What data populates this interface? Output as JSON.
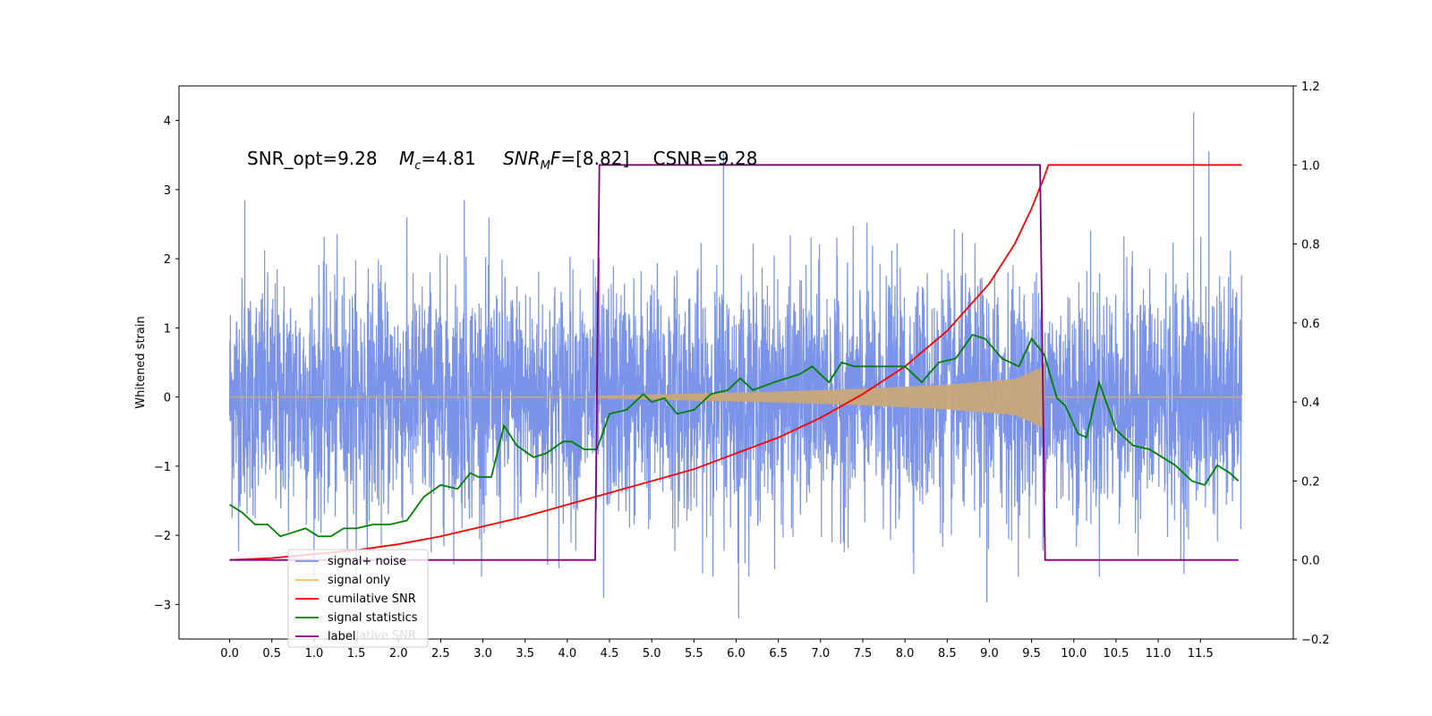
{
  "chart_data": {
    "type": "line",
    "title": "",
    "annotation": {
      "snr_opt": "SNR_opt=9.28",
      "mc_sym": "M",
      "mc_sub": "c",
      "mc_val": "=4.81",
      "mf_sym": "SNR",
      "mf_sub": "M",
      "mf_sym2": "F",
      "mf_val": "=[8.82]",
      "csnr": "CSNR=9.28"
    },
    "ylabel_left": "Whitened strain",
    "ylabel_right": "",
    "xlabel": "",
    "x_range": [
      0,
      11.99
    ],
    "xlim": [
      -0.6,
      12.6
    ],
    "ylim_left": [
      -3.5,
      4.5
    ],
    "ylim_right": [
      -0.2,
      1.2
    ],
    "x_ticks": [
      "0.0",
      "0.5",
      "1.0",
      "1.5",
      "2.0",
      "2.5",
      "3.0",
      "3.5",
      "4.0",
      "4.5",
      "5.0",
      "5.5",
      "6.0",
      "6.5",
      "7.0",
      "7.5",
      "8.0",
      "8.5",
      "9.0",
      "9.5",
      "10.0",
      "10.5",
      "11.0",
      "11.5"
    ],
    "y_ticks_left": [
      "−3",
      "−2",
      "−1",
      "0",
      "1",
      "2",
      "3",
      "4"
    ],
    "y_ticks_right": [
      "−0.2",
      "0.0",
      "0.2",
      "0.4",
      "0.6",
      "0.8",
      "1.0",
      "1.2"
    ],
    "grid": false,
    "legend_position": "lower-left",
    "legend": [
      "signal+ noise",
      "signal only",
      "cumilative SNR",
      "signal statistics",
      "label"
    ],
    "legend_underlay_text": "cumilative SNR",
    "series": [
      {
        "name": "signal+ noise",
        "axis": "left",
        "color": "#7b93e8",
        "noise_std": 0.85,
        "notable_peaks": [
          [
            0.18,
            2.85
          ],
          [
            2.78,
            2.85
          ],
          [
            5.85,
            3.55
          ],
          [
            6.03,
            -3.2
          ],
          [
            11.42,
            4.12
          ],
          [
            11.6,
            3.55
          ],
          [
            4.43,
            -2.9
          ],
          [
            8.97,
            -2.97
          ]
        ]
      },
      {
        "name": "signal only",
        "axis": "left",
        "color": "#c8a77a",
        "chirp_start": 4.35,
        "chirp_end": 9.65,
        "envelope": [
          [
            4.35,
            0.02
          ],
          [
            5.5,
            0.05
          ],
          [
            6.5,
            0.08
          ],
          [
            7.5,
            0.12
          ],
          [
            8.5,
            0.18
          ],
          [
            9.3,
            0.26
          ],
          [
            9.6,
            0.42
          ],
          [
            9.65,
            0.5
          ]
        ]
      },
      {
        "name": "cumilative SNR",
        "axis": "right",
        "color": "#ff0000",
        "x": [
          0.0,
          0.5,
          1.0,
          1.5,
          2.0,
          2.5,
          3.0,
          3.5,
          4.0,
          4.5,
          5.0,
          5.5,
          6.0,
          6.5,
          7.0,
          7.5,
          8.0,
          8.5,
          9.0,
          9.3,
          9.5,
          9.65,
          9.7,
          10.0,
          11.0,
          11.99
        ],
        "y": [
          0.0,
          0.005,
          0.015,
          0.025,
          0.04,
          0.06,
          0.085,
          0.11,
          0.14,
          0.17,
          0.2,
          0.23,
          0.27,
          0.31,
          0.36,
          0.42,
          0.49,
          0.58,
          0.7,
          0.8,
          0.89,
          0.97,
          1.0,
          1.0,
          1.0,
          1.0
        ]
      },
      {
        "name": "signal statistics",
        "axis": "right",
        "color": "#008000",
        "x": [
          0.0,
          0.15,
          0.3,
          0.45,
          0.6,
          0.75,
          0.9,
          1.05,
          1.2,
          1.35,
          1.5,
          1.7,
          1.9,
          2.1,
          2.3,
          2.5,
          2.7,
          2.85,
          2.95,
          3.1,
          3.25,
          3.4,
          3.6,
          3.75,
          3.95,
          4.05,
          4.2,
          4.35,
          4.5,
          4.7,
          4.9,
          5.0,
          5.15,
          5.3,
          5.5,
          5.7,
          5.9,
          6.05,
          6.2,
          6.45,
          6.6,
          6.75,
          6.9,
          7.1,
          7.25,
          7.4,
          7.6,
          7.8,
          8.0,
          8.2,
          8.4,
          8.6,
          8.8,
          8.95,
          9.15,
          9.35,
          9.5,
          9.65,
          9.8,
          9.9,
          10.05,
          10.15,
          10.3,
          10.5,
          10.7,
          10.9,
          11.05,
          11.2,
          11.4,
          11.55,
          11.7,
          11.85,
          11.95
        ],
        "y": [
          0.14,
          0.12,
          0.09,
          0.09,
          0.06,
          0.07,
          0.08,
          0.06,
          0.06,
          0.08,
          0.08,
          0.09,
          0.09,
          0.1,
          0.16,
          0.19,
          0.18,
          0.22,
          0.21,
          0.21,
          0.34,
          0.29,
          0.26,
          0.27,
          0.3,
          0.3,
          0.28,
          0.28,
          0.37,
          0.38,
          0.42,
          0.4,
          0.41,
          0.37,
          0.38,
          0.42,
          0.43,
          0.46,
          0.43,
          0.45,
          0.46,
          0.47,
          0.49,
          0.45,
          0.5,
          0.49,
          0.49,
          0.49,
          0.49,
          0.45,
          0.5,
          0.51,
          0.57,
          0.56,
          0.51,
          0.49,
          0.56,
          0.52,
          0.41,
          0.39,
          0.32,
          0.31,
          0.45,
          0.33,
          0.29,
          0.28,
          0.26,
          0.24,
          0.2,
          0.19,
          0.24,
          0.22,
          0.2
        ]
      },
      {
        "name": "label",
        "axis": "right",
        "color": "#800080",
        "x": [
          0.0,
          4.33,
          4.38,
          9.6,
          9.66,
          11.95
        ],
        "y": [
          0.0,
          0.0,
          1.0,
          1.0,
          0.0,
          0.0
        ]
      }
    ]
  }
}
